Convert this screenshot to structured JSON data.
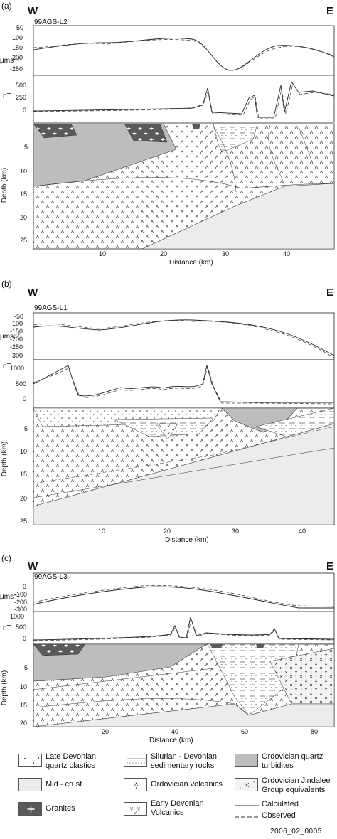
{
  "panels": [
    {
      "tag": "(a)",
      "west": "W",
      "east": "E",
      "line": "99AGS-L2",
      "grav_unit": "μms⁻²",
      "grav_ticks": [
        "-50",
        "-100",
        "-150",
        "-200",
        "-250"
      ],
      "mag_unit": "nT",
      "mag_ticks": [
        "500",
        "250",
        "0"
      ],
      "depth_label": "Depth (km)",
      "depth_ticks": [
        "5",
        "10",
        "15",
        "20",
        "25"
      ],
      "dist_label": "Distance (km)",
      "dist_ticks": [
        "10",
        "20",
        "30",
        "40"
      ]
    },
    {
      "tag": "(b)",
      "west": "W",
      "east": "E",
      "line": "99AGS-L1",
      "grav_unit": "μms⁻²",
      "grav_ticks": [
        "-50",
        "-100",
        "-150",
        "-200",
        "-250",
        "-300"
      ],
      "mag_unit": "nT",
      "mag_ticks": [
        "1000",
        "500",
        "0"
      ],
      "depth_label": "Depth (km)",
      "depth_ticks": [
        "5",
        "10",
        "15",
        "20",
        "25"
      ],
      "dist_label": "Distance (km)",
      "dist_ticks": [
        "10",
        "20",
        "30",
        "40"
      ]
    },
    {
      "tag": "(c)",
      "west": "W",
      "east": "E",
      "line": "99AGS-L3",
      "grav_unit": "μms⁻²",
      "grav_ticks": [
        "0",
        "-100",
        "-200",
        "-300"
      ],
      "mag_unit": "nT",
      "mag_ticks": [
        "1000",
        "500",
        "0"
      ],
      "depth_label": "Depth (km)",
      "depth_ticks": [
        "5",
        "10",
        "15",
        "20"
      ],
      "dist_label": "Distance (km)",
      "dist_ticks": [
        "20",
        "40",
        "60",
        "80"
      ]
    }
  ],
  "legend": {
    "late_devonian": "Late Devonian quartz clastics",
    "silurian_devonian": "Silurian - Devonian sedimentary rocks",
    "ordovician_turbidites": "Ordovician quartz turbidites",
    "mid_crust": "Mid - crust",
    "ordovician_volcanics": "Ordovician volcanics",
    "ordovician_jindalee": "Ordovician Jindalee Group equivalents",
    "granites": "Granites",
    "early_devonian": "Early Devonian Volcanics",
    "calculated": "Calculated",
    "observed": "Observed"
  },
  "footer": "2006_02_0005",
  "colors": {
    "mid_crust": "#ececec",
    "turbidites": "#bdbdbd",
    "granite": "#5a5a5a"
  }
}
